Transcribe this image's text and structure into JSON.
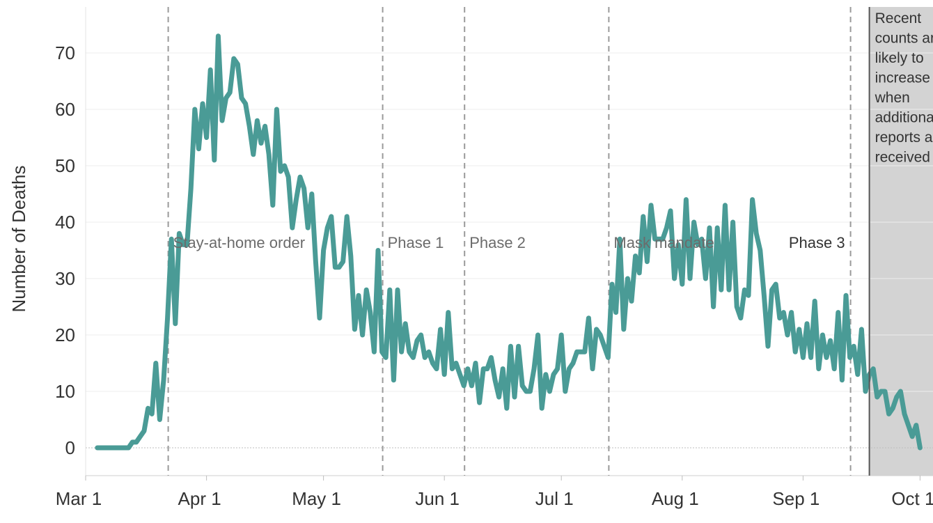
{
  "chart_data": {
    "type": "line",
    "title": "",
    "xlabel": "",
    "ylabel": "Number of Deaths",
    "ylim": [
      -5,
      78
    ],
    "y_ticks": [
      0,
      10,
      20,
      30,
      40,
      50,
      60,
      70
    ],
    "x_ticks": [
      {
        "date": "2020-03-01",
        "label": "Mar 1"
      },
      {
        "date": "2020-04-01",
        "label": "Apr 1"
      },
      {
        "date": "2020-05-01",
        "label": "May 1"
      },
      {
        "date": "2020-06-01",
        "label": "Jun 1"
      },
      {
        "date": "2020-07-01",
        "label": "Jul 1"
      },
      {
        "date": "2020-08-01",
        "label": "Aug 1"
      },
      {
        "date": "2020-09-01",
        "label": "Sep 1"
      },
      {
        "date": "2020-10-01",
        "label": "Oct 1"
      }
    ],
    "grid": true,
    "line_color": "#4a9b96",
    "events": [
      {
        "date": "2020-03-22",
        "label": "Stay-at-home order"
      },
      {
        "date": "2020-05-16",
        "label": "Phase 1"
      },
      {
        "date": "2020-06-06",
        "label": "Phase 2"
      },
      {
        "date": "2020-07-13",
        "label": "Mask mandate"
      },
      {
        "date": "2020-09-13",
        "label": "Phase 3"
      }
    ],
    "incomplete_period": {
      "start": "2020-09-18",
      "note_lines": [
        "Recent",
        "counts are",
        "likely to",
        "increase",
        "when",
        "additional",
        "reports are",
        "received"
      ]
    },
    "series": [
      {
        "start_date": "2020-03-04",
        "values": [
          0,
          0,
          0,
          0,
          0,
          0,
          0,
          0,
          0,
          1,
          1,
          2,
          3,
          7,
          6,
          15,
          5,
          12,
          23,
          37,
          22,
          38,
          36,
          36,
          46,
          60,
          53,
          61,
          55,
          67,
          51,
          73,
          58,
          62,
          63,
          69,
          68,
          62,
          61,
          57,
          52,
          58,
          54,
          57,
          52,
          43,
          60,
          49,
          50,
          48,
          39,
          44,
          48,
          46,
          39,
          45,
          33,
          23,
          35,
          39,
          41,
          32,
          32,
          33,
          41,
          34,
          21,
          27,
          20,
          28,
          24,
          17,
          35,
          17,
          16,
          28,
          12,
          28,
          17,
          22,
          17,
          16,
          19,
          20,
          16,
          17,
          15,
          14,
          21,
          13,
          24,
          14,
          15,
          13,
          11,
          14,
          11,
          15,
          8,
          14,
          14,
          16,
          12,
          9,
          14,
          7,
          18,
          9,
          18,
          11,
          10,
          10,
          14,
          20,
          7,
          13,
          10,
          13,
          14,
          20,
          10,
          14,
          15,
          17,
          17,
          17,
          23,
          14,
          21,
          20,
          18,
          16,
          29,
          24,
          37,
          21,
          30,
          26,
          34,
          31,
          41,
          33,
          43,
          37,
          37,
          37,
          39,
          42,
          30,
          36,
          29,
          44,
          30,
          40,
          36,
          37,
          30,
          39,
          25,
          39,
          28,
          43,
          28,
          40,
          25,
          23,
          28,
          27,
          44,
          38,
          35,
          27,
          18,
          28,
          29,
          23,
          24,
          20,
          24,
          17,
          21,
          16,
          22,
          16,
          26,
          14,
          20,
          16,
          19,
          14,
          24,
          12,
          27,
          16,
          18,
          13,
          21,
          10,
          13,
          14,
          9,
          10,
          10,
          6,
          7,
          9,
          10,
          6,
          4,
          2,
          4,
          0
        ]
      }
    ]
  }
}
